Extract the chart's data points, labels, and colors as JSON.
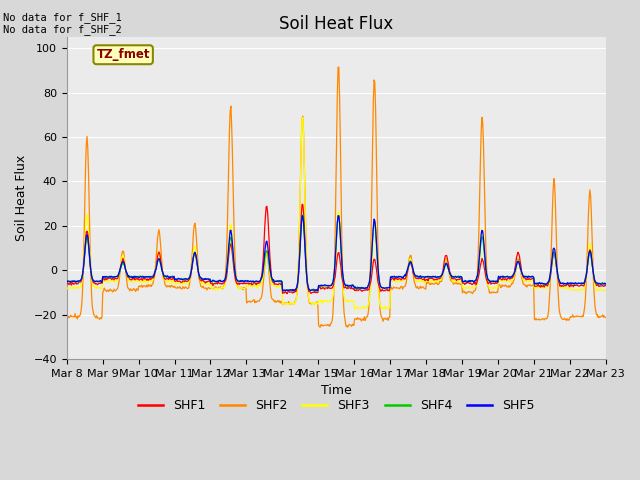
{
  "title": "Soil Heat Flux",
  "xlabel": "Time",
  "ylabel": "Soil Heat Flux",
  "ylim": [
    -40,
    105
  ],
  "yticks": [
    -40,
    -20,
    0,
    20,
    40,
    60,
    80,
    100
  ],
  "n_days": 15,
  "start_day": 8,
  "colors": {
    "SHF1": "#ff0000",
    "SHF2": "#ff8800",
    "SHF3": "#ffff00",
    "SHF4": "#00cc00",
    "SHF5": "#0000ff"
  },
  "no_data_text": [
    "No data for f_SHF_1",
    "No data for f_SHF_2"
  ],
  "tz_label": "TZ_fmet",
  "bg_color": "#d8d8d8",
  "plot_bg": "#ebebeb",
  "title_fontsize": 12,
  "axis_label_fontsize": 9,
  "tick_fontsize": 8,
  "shf2_peaks": [
    60,
    9,
    18,
    21,
    74,
    9,
    70,
    93,
    87,
    7,
    5,
    69,
    5,
    41,
    36
  ],
  "shf3_peaks": [
    25,
    7,
    9,
    11,
    21,
    8,
    70,
    27,
    22,
    5,
    5,
    18,
    5,
    10,
    12
  ],
  "shf1_peaks": [
    18,
    5,
    8,
    8,
    12,
    29,
    30,
    8,
    5,
    3,
    7,
    5,
    8,
    8,
    9
  ],
  "shf4_peaks": [
    15,
    3,
    5,
    8,
    15,
    9,
    25,
    25,
    22,
    4,
    3,
    15,
    4,
    8,
    8
  ],
  "shf5_peaks": [
    16,
    4,
    5,
    8,
    18,
    13,
    25,
    25,
    23,
    4,
    3,
    18,
    4,
    10,
    9
  ],
  "shf2_nights": [
    -21,
    -9,
    -7,
    -8,
    -8,
    -14,
    -15,
    -25,
    -22,
    -8,
    -6,
    -10,
    -7,
    -22,
    -21
  ],
  "shf3_nights": [
    -8,
    -5,
    -5,
    -6,
    -8,
    -7,
    -15,
    -14,
    -17,
    -5,
    -5,
    -8,
    -5,
    -8,
    -9
  ],
  "shf1_nights": [
    -6,
    -4,
    -4,
    -5,
    -6,
    -6,
    -10,
    -8,
    -9,
    -4,
    -4,
    -6,
    -4,
    -7,
    -7
  ],
  "shf4_nights": [
    -5,
    -3,
    -3,
    -4,
    -5,
    -5,
    -9,
    -7,
    -8,
    -3,
    -3,
    -5,
    -3,
    -6,
    -6
  ],
  "shf5_nights": [
    -5,
    -3,
    -3,
    -4,
    -5,
    -5,
    -9,
    -7,
    -8,
    -3,
    -3,
    -5,
    -3,
    -6,
    -6
  ]
}
